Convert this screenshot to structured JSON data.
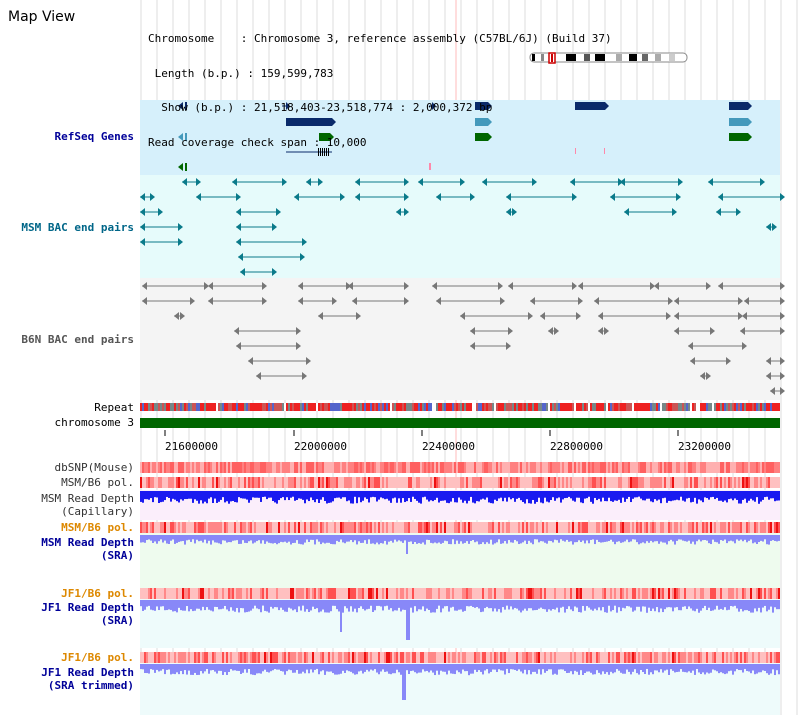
{
  "header": {
    "title": "Map View",
    "info_lines": [
      "Chromosome    : Chromosome 3, reference assembly (C57BL/6J) (Build 37)",
      " Length (b.p.) : 159,599,783",
      "  Show (b.p.) : 21,518,403-23,518,774 : 2,000,372 bp",
      "Read coverage check span : 10,000"
    ]
  },
  "tracks": {
    "refseq": "RefSeq Genes",
    "msm_bac": "MSM BAC end pairs",
    "b6n_bac": "B6N BAC end pairs",
    "repeat": "Repeat",
    "chromosome": "chromosome 3",
    "dbsnp": "dbSNP(Mouse)",
    "msm_b6_pol_1": "MSM/B6 pol.",
    "msm_depth_cap_1": "MSM Read Depth",
    "msm_depth_cap_2": "(Capillary)",
    "msm_b6_pol_2": "MSM/B6 pol.",
    "msm_depth_sra_1": "MSM Read Depth",
    "msm_depth_sra_2": "(SRA)",
    "jf1_b6_pol_1": "JF1/B6 pol.",
    "jf1_depth_sra_1": "JF1 Read Depth",
    "jf1_depth_sra_2": "(SRA)",
    "jf1_b6_pol_2": "JF1/B6 pol.",
    "jf1_depth_trim_1": "JF1 Read Depth",
    "jf1_depth_trim_2": "(SRA trimmed)"
  },
  "axis": {
    "ticks": [
      "21600000",
      "22000000",
      "22400000",
      "22800000",
      "23200000"
    ]
  },
  "colors": {
    "refseq_bg": "#d6f0fb",
    "msm_bac_bg": "#e6fbfb",
    "b6n_bac_bg": "#f4f4f4",
    "chromosome_bar": "#006600",
    "repeat": "#ee2222",
    "depth_capillary": "#1a1af0",
    "depth_sra": "#8888f8",
    "pol": "#ff5555"
  }
}
